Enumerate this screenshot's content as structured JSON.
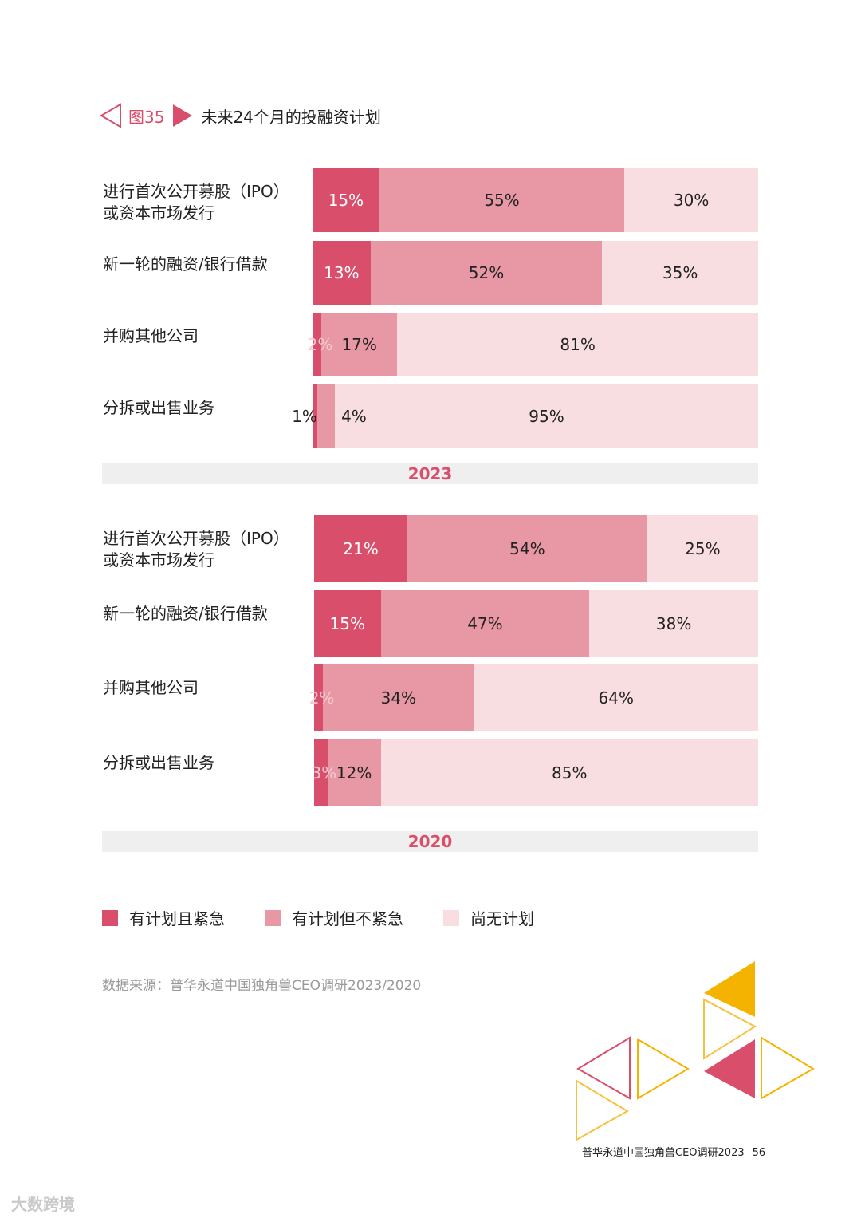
{
  "figure": {
    "number": "图35",
    "title": "未来24个月的投融资计划"
  },
  "colors": {
    "urgent": "#d94f6b",
    "planned": "#e898a5",
    "none": "#f8dde1",
    "accent": "#d94f6b"
  },
  "chart_data": [
    {
      "type": "bar",
      "orientation": "horizontal",
      "stacked": true,
      "year": "2023",
      "categories": [
        "进行首次公开募股（IPO）\n或资本市场发行",
        "新一轮的融资/银行借款",
        "并购其他公司",
        "分拆或出售业务"
      ],
      "series": [
        {
          "name": "有计划且紧急",
          "values": [
            15,
            13,
            2,
            1
          ]
        },
        {
          "name": "有计划但不紧急",
          "values": [
            55,
            52,
            17,
            4
          ]
        },
        {
          "name": "尚无计划",
          "values": [
            30,
            35,
            81,
            95
          ]
        }
      ],
      "xlim": [
        0,
        100
      ],
      "unit": "%"
    },
    {
      "type": "bar",
      "orientation": "horizontal",
      "stacked": true,
      "year": "2020",
      "categories": [
        "进行首次公开募股（IPO）\n或资本市场发行",
        "新一轮的融资/银行借款",
        "并购其他公司",
        "分拆或出售业务"
      ],
      "series": [
        {
          "name": "有计划且紧急",
          "values": [
            21,
            15,
            2,
            3
          ]
        },
        {
          "name": "有计划但不紧急",
          "values": [
            54,
            47,
            34,
            12
          ]
        },
        {
          "name": "尚无计划",
          "values": [
            25,
            38,
            64,
            85
          ]
        }
      ],
      "xlim": [
        0,
        100
      ],
      "unit": "%"
    }
  ],
  "legend": [
    {
      "label": "有计划且紧急",
      "color": "#d94f6b"
    },
    {
      "label": "有计划但不紧急",
      "color": "#e898a5"
    },
    {
      "label": "尚无计划",
      "color": "#f8dde1"
    }
  ],
  "source": "数据来源：普华永道中国独角兽CEO调研2023/2020",
  "footer": {
    "text": "普华永道中国独角兽CEO调研2023",
    "page": "56"
  },
  "watermark": "大数跨境"
}
